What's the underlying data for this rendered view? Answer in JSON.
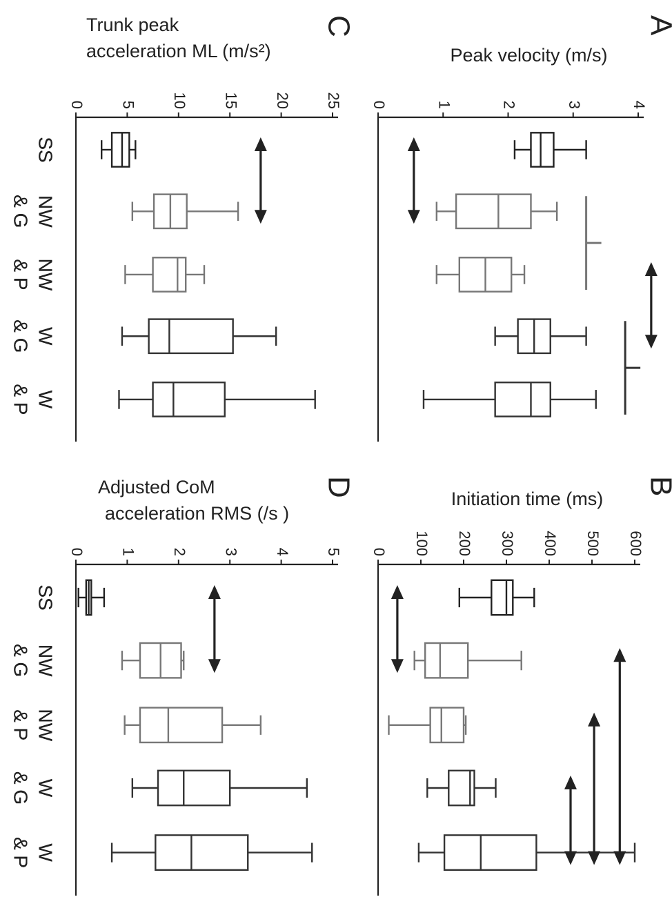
{
  "chart_data": [
    {
      "panel": "A",
      "type": "box",
      "ylabel": "Peak velocity (m/s)",
      "ylim": [
        0,
        4
      ],
      "ticks": [
        0,
        1,
        2,
        3,
        4
      ],
      "tick_labels": [
        "0",
        "1",
        "2",
        "3",
        "4"
      ],
      "categories": [
        "SS",
        "NW & G",
        "NW & P",
        "W & G",
        "W & P"
      ],
      "boxes": [
        {
          "category": "SS",
          "min": 2.1,
          "q1": 2.35,
          "median": 2.5,
          "q3": 2.7,
          "max": 3.2,
          "color": "#222222"
        },
        {
          "category": "NW & G",
          "min": 0.9,
          "q1": 1.2,
          "median": 1.85,
          "q3": 2.35,
          "max": 2.75,
          "color": "#777777"
        },
        {
          "category": "NW & P",
          "min": 0.9,
          "q1": 1.25,
          "median": 1.65,
          "q3": 2.05,
          "max": 2.25,
          "color": "#777777"
        },
        {
          "category": "W & G",
          "min": 1.8,
          "q1": 2.15,
          "median": 2.4,
          "q3": 2.65,
          "max": 3.2,
          "color": "#333333"
        },
        {
          "category": "W & P",
          "min": 0.7,
          "q1": 1.8,
          "median": 2.35,
          "q3": 2.65,
          "max": 3.35,
          "color": "#333333"
        }
      ],
      "significance": [
        {
          "from": "SS",
          "to": "NW & G",
          "value": 0.55,
          "style": "arrow",
          "color": "#222222"
        },
        {
          "from": "NW & G",
          "to": "NW & P",
          "value": 3.2,
          "style": "bracket",
          "color": "#777777"
        },
        {
          "from": "W & G",
          "to": "W & P",
          "value": 3.8,
          "style": "bracket",
          "color": "#333333"
        },
        {
          "from": "NW & P",
          "to": "W & G",
          "value": 4.2,
          "style": "arrow",
          "color": "#222222"
        }
      ]
    },
    {
      "panel": "B",
      "type": "box",
      "ylabel": "Initiation time (ms)",
      "ylim": [
        0,
        600
      ],
      "ticks": [
        0,
        100,
        200,
        300,
        400,
        500,
        600
      ],
      "tick_labels": [
        "0",
        "100",
        "200",
        "300",
        "400",
        "500",
        "600"
      ],
      "categories": [
        "SS",
        "NW & G",
        "NW & P",
        "W & G",
        "W & P"
      ],
      "boxes": [
        {
          "category": "SS",
          "min": 190,
          "q1": 265,
          "median": 300,
          "q3": 315,
          "max": 365,
          "color": "#222222"
        },
        {
          "category": "NW & G",
          "min": 85,
          "q1": 110,
          "median": 145,
          "q3": 210,
          "max": 335,
          "color": "#777777"
        },
        {
          "category": "NW & P",
          "min": 25,
          "q1": 122,
          "median": 148,
          "q3": 200,
          "max": 205,
          "color": "#777777"
        },
        {
          "category": "W & G",
          "min": 115,
          "q1": 165,
          "median": 215,
          "q3": 225,
          "max": 275,
          "color": "#333333"
        },
        {
          "category": "W & P",
          "min": 95,
          "q1": 155,
          "median": 240,
          "q3": 370,
          "max": 600,
          "color": "#333333"
        }
      ],
      "significance": [
        {
          "from": "SS",
          "to": "NW & G",
          "value": 45,
          "style": "arrow",
          "color": "#222222"
        },
        {
          "from": "W & G",
          "to": "W & P",
          "value": 450,
          "style": "arrow",
          "color": "#222222"
        },
        {
          "from": "NW & P",
          "to": "W & P",
          "value": 505,
          "style": "arrow",
          "color": "#222222"
        },
        {
          "from": "NW & G",
          "to": "W & P",
          "value": 565,
          "style": "arrow",
          "color": "#222222"
        }
      ]
    },
    {
      "panel": "C",
      "type": "box",
      "ylabel": "Trunk peak acceleration ML  (m/s²)",
      "ylim": [
        0,
        25
      ],
      "ticks": [
        0,
        5,
        10,
        15,
        20,
        25
      ],
      "tick_labels": [
        "0",
        "5",
        "10",
        "15",
        "20",
        "25"
      ],
      "categories": [
        "SS",
        "NW & G",
        "NW & P",
        "W & G",
        "W & P"
      ],
      "boxes": [
        {
          "category": "SS",
          "min": 2.5,
          "q1": 3.5,
          "median": 4.5,
          "q3": 5.2,
          "max": 5.8,
          "color": "#222222"
        },
        {
          "category": "NW & G",
          "min": 5.5,
          "q1": 7.6,
          "median": 9.2,
          "q3": 10.8,
          "max": 15.8,
          "color": "#777777"
        },
        {
          "category": "NW & P",
          "min": 4.8,
          "q1": 7.5,
          "median": 9.9,
          "q3": 10.7,
          "max": 12.5,
          "color": "#777777"
        },
        {
          "category": "W & G",
          "min": 4.5,
          "q1": 7.1,
          "median": 9.1,
          "q3": 15.3,
          "max": 19.5,
          "color": "#333333"
        },
        {
          "category": "W & P",
          "min": 4.2,
          "q1": 7.5,
          "median": 9.5,
          "q3": 14.5,
          "max": 23.3,
          "color": "#333333"
        }
      ],
      "significance": [
        {
          "from": "SS",
          "to": "NW & G",
          "value": 18,
          "style": "arrow",
          "color": "#222222"
        }
      ]
    },
    {
      "panel": "D",
      "type": "box",
      "ylabel": "Adjusted CoM acceleration RMS  (/s )",
      "ylim": [
        0,
        5
      ],
      "ticks": [
        0,
        1,
        2,
        3,
        4,
        5
      ],
      "tick_labels": [
        "0",
        "1",
        "2",
        "3",
        "4",
        "5"
      ],
      "categories": [
        "SS",
        "NW & G",
        "NW & P",
        "W & G",
        "W & P"
      ],
      "boxes": [
        {
          "category": "SS",
          "min": 0.05,
          "q1": 0.2,
          "median": 0.25,
          "q3": 0.3,
          "max": 0.55,
          "color": "#222222"
        },
        {
          "category": "NW & G",
          "min": 0.9,
          "q1": 1.25,
          "median": 1.65,
          "q3": 2.05,
          "max": 2.1,
          "color": "#777777"
        },
        {
          "category": "NW & P",
          "min": 0.95,
          "q1": 1.25,
          "median": 1.8,
          "q3": 2.85,
          "max": 3.6,
          "color": "#777777"
        },
        {
          "category": "W & G",
          "min": 1.1,
          "q1": 1.6,
          "median": 2.1,
          "q3": 3.0,
          "max": 4.5,
          "color": "#333333"
        },
        {
          "category": "W & P",
          "min": 0.7,
          "q1": 1.55,
          "median": 2.25,
          "q3": 3.35,
          "max": 4.6,
          "color": "#333333"
        }
      ],
      "significance": [
        {
          "from": "SS",
          "to": "NW & G",
          "value": 2.7,
          "style": "arrow",
          "color": "#222222"
        }
      ]
    }
  ]
}
